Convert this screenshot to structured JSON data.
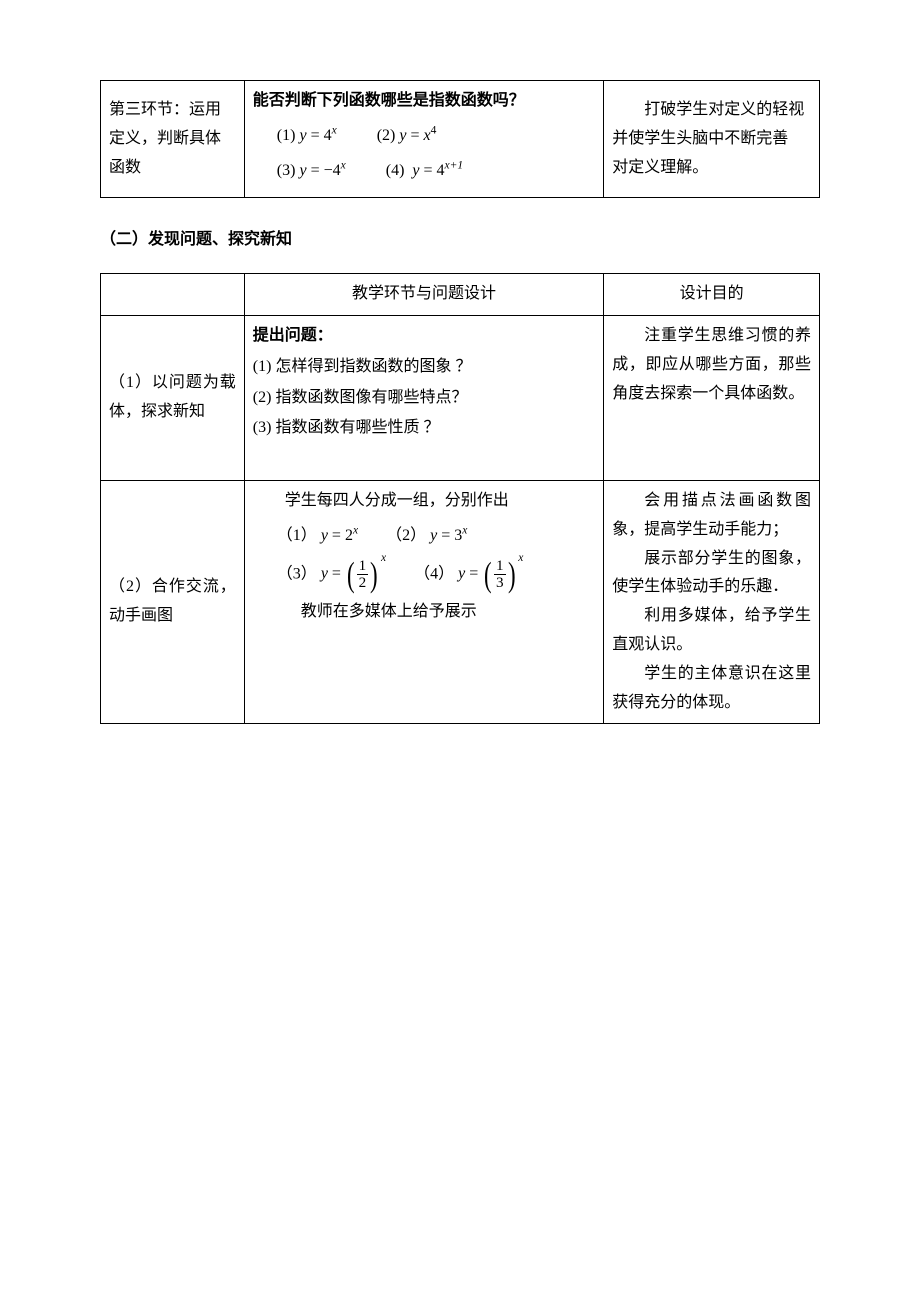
{
  "table1": {
    "left": {
      "line1": "第三环节：运用",
      "line2": "定义，判断具体",
      "line3": "函数"
    },
    "mid": {
      "question": "能否判断下列函数哪些是指数函数吗？",
      "eq1_label": "(1)",
      "eq1_lhs": "y",
      "eq1_eq": " = ",
      "eq1_rhs_base": "4",
      "eq1_rhs_exp": "x",
      "eq2_label": "(2)",
      "eq2_lhs": "y",
      "eq2_eq": " = ",
      "eq2_rhs_base": "x",
      "eq2_rhs_exp": "4",
      "eq3_label": "(3)",
      "eq3_lhs": "y",
      "eq3_eq": " = ",
      "eq3_rhs_neg": "−4",
      "eq3_rhs_exp": "x",
      "eq4_label": "(4)",
      "eq4_lhs": "y",
      "eq4_eq": " = ",
      "eq4_rhs_base": "4",
      "eq4_rhs_exp": "x+1"
    },
    "right": {
      "line1": "　　打破学生对定义的轻视",
      "line2": "并使学生头脑中不断完善",
      "line3": "对定义理解。"
    }
  },
  "section2_heading": "（二）发现问题、探究新知",
  "table2": {
    "header_mid": "教学环节与问题设计",
    "header_right": "设计目的",
    "row1": {
      "left": "（1）以问题为载体，探求新知",
      "mid_title": "提出问题：",
      "q1": "(1)  怎样得到指数函数的图象 ？",
      "q2": "(2) 指数函数图像有哪些特点？",
      "q3": "(3)  指数函数有哪些性质  ？",
      "right": "注重学生思维习惯的养成，即应从哪些方面，那些角度去探索一个具体函数。"
    },
    "row2": {
      "left": "（2）合作交流，动手画图",
      "mid_intro": "学生每四人分成一组，分别作出",
      "eq1_label": "（1）",
      "eq1_lhs": "y",
      "eq1_eq": " = ",
      "eq1_base": "2",
      "eq1_exp": "x",
      "eq2_label": "（2）",
      "eq2_lhs": "y",
      "eq2_eq": " = ",
      "eq2_base": "3",
      "eq2_exp": "x",
      "eq3_label": "（3）",
      "eq3_lhs": "y",
      "eq3_eq": " = ",
      "eq3_num": "1",
      "eq3_den": "2",
      "eq3_exp": "x",
      "eq4_label": "（4）",
      "eq4_lhs": "y",
      "eq4_eq": " = ",
      "eq4_num": "1",
      "eq4_den": "3",
      "eq4_exp": "x",
      "mid_outro": "教师在多媒体上给予展示",
      "right_p1": "会用描点法画函数图象，提高学生动手能力；",
      "right_p2": "展示部分学生的图象，使学生体验动手的乐趣．",
      "right_p3": "利用多媒体，给予学生直观认识。",
      "right_p4": "学生的主体意识在这里获得充分的体现。"
    }
  }
}
